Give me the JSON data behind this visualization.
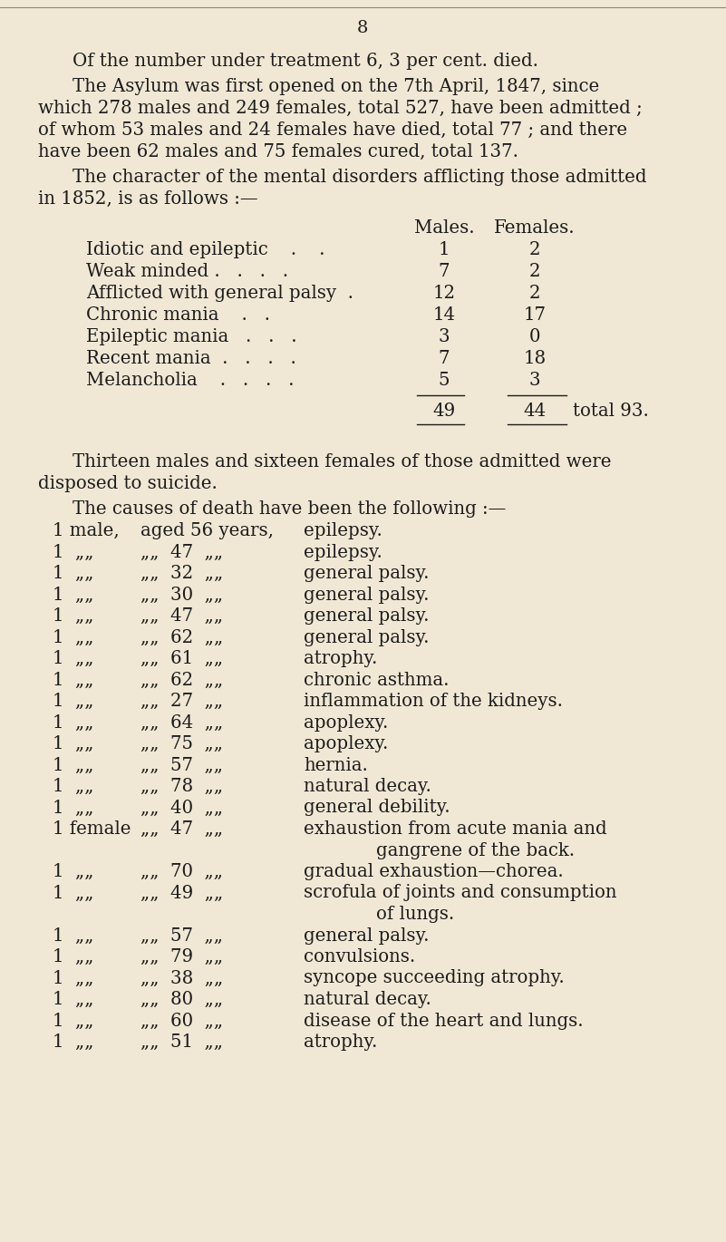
{
  "page_number": "8",
  "bg_color": "#f0e8d5",
  "text_color": "#1c1c1c",
  "page_width": 8.01,
  "page_height": 13.7,
  "top_line_color": "#555555",
  "para1": "Of the number under treatment 6, 3 per cent. died.",
  "para2_lines": [
    "The Asylum was first opened on the 7th April, 1847, since",
    "which 278 males and 249 females, total 527, have been admitted ;",
    "of whom 53 males and 24 females have died, total 77 ; and there",
    "have been 62 males and 75 females cured, total 137."
  ],
  "para3_lines": [
    "The character of the mental disorders afflicting those admitted",
    "in 1852, is as follows :—"
  ],
  "table_header": [
    "Males.",
    "Females."
  ],
  "table_rows": [
    [
      "Idiotic and epileptic    .    .",
      "1",
      "2"
    ],
    [
      "Weak minded .   .   .   .",
      "7",
      "2"
    ],
    [
      "Afflicted with general palsy  .",
      "12",
      "2"
    ],
    [
      "Chronic mania    .   .",
      "14",
      "17"
    ],
    [
      "Epileptic mania   .   .   .",
      "3",
      "0"
    ],
    [
      "Recent mania  .   .   .   .",
      "7",
      "18"
    ],
    [
      "Melancholia    .   .   .   .",
      "5",
      "3"
    ]
  ],
  "total_males": "49",
  "total_females": "44",
  "total_label": "total 93.",
  "para4_lines": [
    "Thirteen males and sixteen females of those admitted were",
    "disposed to suicide."
  ],
  "para5": "The causes of death have been the following :—",
  "death_col1": [
    "1 male,",
    "1  „„",
    "1  „„",
    "1  „„",
    "1  „„",
    "1  „„",
    "1  „„",
    "1  „„",
    "1  „„",
    "1  „„",
    "1  „„",
    "1  „„",
    "1  „„",
    "1  „„",
    "1 female",
    "",
    "1  „„",
    "1  „„",
    "",
    "1  „„",
    "1  „„",
    "1  „„",
    "1  „„",
    "1  „„",
    "1  „„"
  ],
  "death_col2": [
    "aged 56 years,",
    "„„  47  „„",
    "„„  32  „„",
    "„„  30  „„",
    "„„  47  „„",
    "„„  62  „„",
    "„„  61  „„",
    "„„  62  „„",
    "„„  27  „„",
    "„„  64  „„",
    "„„  75  „„",
    "„„  57  „„",
    "„„  78  „„",
    "„„  40  „„",
    "„„  47  „„",
    "",
    "„„  70  „„",
    "„„  49  „„",
    "",
    "„„  57  „„",
    "„„  79  „„",
    "„„  38  „„",
    "„„  80  „„",
    "„„  60  „„",
    "„„  51  „„"
  ],
  "death_col3": [
    "epilepsy.",
    "epilepsy.",
    "general palsy.",
    "general palsy.",
    "general palsy.",
    "general palsy.",
    "atrophy.",
    "chronic asthma.",
    "inflammation of the kidneys.",
    "apoplexy.",
    "apoplexy.",
    "hernia.",
    "natural decay.",
    "general debility.",
    "exhaustion from acute mania and",
    "      gangrene of the back.",
    "gradual exhaustion—chorea.",
    "scrofula of joints and consumption",
    "      of lungs.",
    "general palsy.",
    "convulsions.",
    "syncope succeeding atrophy.",
    "natural decay.",
    "disease of the heart and lungs.",
    "atrophy."
  ]
}
